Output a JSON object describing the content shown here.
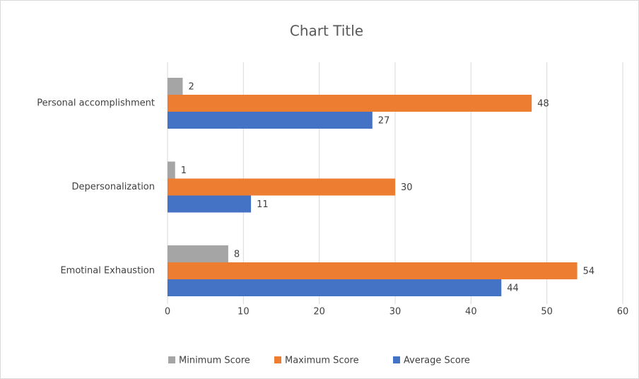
{
  "chart_data": {
    "type": "bar",
    "orientation": "horizontal",
    "title": "Chart Title",
    "categories": [
      "Emotinal Exhaustion",
      "Depersonalization",
      "Personal accomplishment"
    ],
    "series": [
      {
        "name": "Minimum Score",
        "color": "#a5a5a5",
        "values": [
          8,
          1,
          2
        ]
      },
      {
        "name": "Maximum Score",
        "color": "#ed7d31",
        "values": [
          54,
          30,
          48
        ]
      },
      {
        "name": "Average Score",
        "color": "#4472c4",
        "values": [
          44,
          11,
          27
        ]
      }
    ],
    "xlim": [
      0,
      60
    ],
    "xticks": [
      0,
      10,
      20,
      30,
      40,
      50,
      60
    ],
    "grid": true,
    "legend": "bottom"
  }
}
